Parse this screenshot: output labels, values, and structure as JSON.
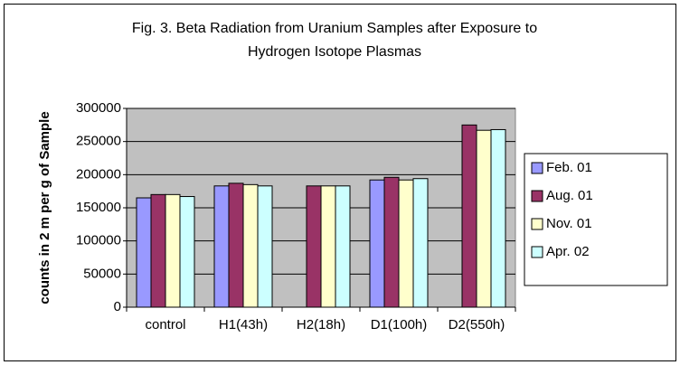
{
  "chart_data": {
    "type": "bar",
    "title": "Fig. 3. Beta Radiation from Uranium Samples after Exposure to Hydrogen Isotope Plasmas",
    "y_label": "counts in 2 m per g of Sample",
    "categories": [
      "control",
      "H1(43h)",
      "H2(18h)",
      "D1(100h)",
      "D2(550h)"
    ],
    "series": [
      {
        "name": "Feb. 01",
        "color": "#9999ff",
        "values": [
          165000,
          183000,
          null,
          192000,
          null
        ]
      },
      {
        "name": "Aug. 01",
        "color": "#993366",
        "values": [
          170000,
          187000,
          183000,
          196000,
          275000
        ]
      },
      {
        "name": "Nov. 01",
        "color": "#ffffcc",
        "values": [
          170000,
          185000,
          183000,
          192000,
          267000
        ]
      },
      {
        "name": "Apr. 02",
        "color": "#ccffff",
        "values": [
          167000,
          183000,
          183000,
          194000,
          268000
        ]
      }
    ],
    "ylim": [
      0,
      300000
    ],
    "yticks": [
      0,
      50000,
      100000,
      150000,
      200000,
      250000,
      300000
    ],
    "grid": true,
    "legend": "right",
    "plot_background": "#c0c0c0"
  }
}
